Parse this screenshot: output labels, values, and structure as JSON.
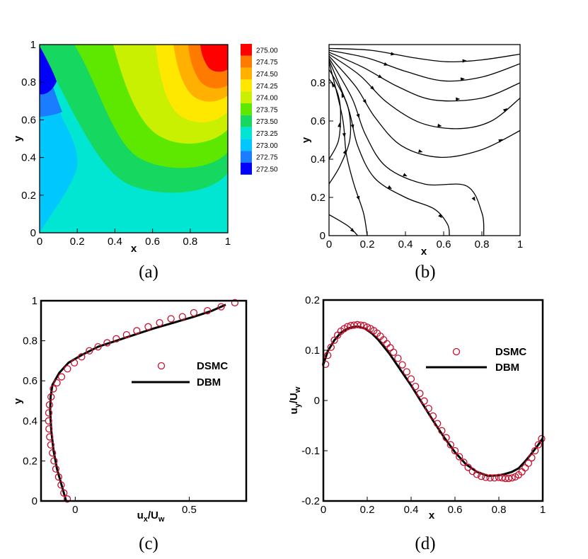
{
  "chart_data": [
    {
      "panel": "a",
      "type": "heatmap",
      "caption": "(a)",
      "xlabel": "x",
      "ylabel": "y",
      "xlim": [
        0,
        1
      ],
      "ylim": [
        0,
        1
      ],
      "xticks": [
        "0",
        "0.2",
        "0.4",
        "0.6",
        "0.8",
        "1"
      ],
      "yticks": [
        "0",
        "0.2",
        "0.4",
        "0.6",
        "0.8",
        "1"
      ],
      "colorbar": {
        "levels": [
          "275.00",
          "274.75",
          "274.50",
          "274.25",
          "274.00",
          "273.75",
          "273.50",
          "273.25",
          "273.00",
          "272.75",
          "272.50"
        ],
        "colors": [
          "#ff0000",
          "#ff7a00",
          "#ffb000",
          "#ffe800",
          "#c8f000",
          "#5ee800",
          "#16d860",
          "#00e6d2",
          "#00c8ff",
          "#1a7cff",
          "#0000ff"
        ]
      },
      "field_description_values": {
        "min": 272.5,
        "max": 275.0
      }
    },
    {
      "panel": "b",
      "type": "streamlines",
      "caption": "(b)",
      "xlabel": "x",
      "ylabel": "y",
      "xlim": [
        0,
        1
      ],
      "ylim": [
        0,
        1
      ],
      "xticks": [
        "0",
        "0.2",
        "0.4",
        "0.6",
        "0.8",
        "1"
      ],
      "yticks": [
        "0",
        "0.2",
        "0.4",
        "0.6",
        "0.8"
      ],
      "streamlines": [
        [
          [
            0.0,
            0.98
          ],
          [
            0.22,
            0.97
          ],
          [
            0.45,
            0.93
          ],
          [
            0.62,
            0.91
          ],
          [
            0.8,
            0.92
          ],
          [
            1.0,
            0.95
          ]
        ],
        [
          [
            0.0,
            0.97
          ],
          [
            0.2,
            0.93
          ],
          [
            0.4,
            0.86
          ],
          [
            0.6,
            0.81
          ],
          [
            0.8,
            0.83
          ],
          [
            1.0,
            0.9
          ]
        ],
        [
          [
            0.0,
            0.96
          ],
          [
            0.18,
            0.88
          ],
          [
            0.36,
            0.78
          ],
          [
            0.55,
            0.71
          ],
          [
            0.8,
            0.72
          ],
          [
            1.0,
            0.8
          ]
        ],
        [
          [
            0.0,
            0.95
          ],
          [
            0.16,
            0.84
          ],
          [
            0.3,
            0.7
          ],
          [
            0.48,
            0.59
          ],
          [
            0.68,
            0.56
          ],
          [
            0.85,
            0.6
          ],
          [
            1.0,
            0.72
          ]
        ],
        [
          [
            0.0,
            0.94
          ],
          [
            0.14,
            0.78
          ],
          [
            0.24,
            0.62
          ],
          [
            0.38,
            0.47
          ],
          [
            0.58,
            0.41
          ],
          [
            0.8,
            0.45
          ],
          [
            1.0,
            0.55
          ]
        ],
        [
          [
            0.0,
            0.93
          ],
          [
            0.12,
            0.72
          ],
          [
            0.19,
            0.53
          ],
          [
            0.3,
            0.36
          ],
          [
            0.5,
            0.27
          ],
          [
            0.72,
            0.26
          ],
          [
            0.8,
            0.12
          ],
          [
            0.81,
            0.0
          ]
        ],
        [
          [
            0.0,
            0.92
          ],
          [
            0.1,
            0.67
          ],
          [
            0.15,
            0.47
          ],
          [
            0.24,
            0.3
          ],
          [
            0.4,
            0.2
          ],
          [
            0.55,
            0.14
          ],
          [
            0.62,
            0.06
          ],
          [
            0.63,
            0.0
          ]
        ],
        [
          [
            0.0,
            0.91
          ],
          [
            0.07,
            0.62
          ],
          [
            0.09,
            0.43
          ],
          [
            0.13,
            0.27
          ],
          [
            0.18,
            0.12
          ],
          [
            0.2,
            0.0
          ]
        ],
        [
          [
            0.0,
            0.4
          ],
          [
            0.05,
            0.5
          ],
          [
            0.06,
            0.66
          ],
          [
            0.04,
            0.76
          ],
          [
            0.0,
            0.82
          ]
        ],
        [
          [
            0.0,
            0.27
          ],
          [
            0.06,
            0.37
          ],
          [
            0.11,
            0.51
          ],
          [
            0.1,
            0.67
          ],
          [
            0.04,
            0.8
          ],
          [
            0.0,
            0.87
          ]
        ],
        [
          [
            0.0,
            0.11
          ],
          [
            0.1,
            0.05
          ],
          [
            0.15,
            0.0
          ]
        ]
      ]
    },
    {
      "panel": "c",
      "type": "line",
      "caption": "(c)",
      "xlabel": "u",
      "xlabel_sub1": "x",
      "xlabel_div": "/U",
      "xlabel_sub2": "w",
      "ylabel": "y",
      "xlim": [
        -0.15,
        0.75
      ],
      "ylim": [
        0,
        1
      ],
      "xticks": [
        "0",
        "0.5"
      ],
      "xtick_values": [
        0,
        0.5
      ],
      "yticks": [
        "0",
        "0.2",
        "0.4",
        "0.6",
        "0.8",
        "1"
      ],
      "legend": {
        "location": "center-right",
        "entries": [
          "DSMC",
          "DBM"
        ]
      },
      "series": [
        {
          "name": "DBM",
          "style": "line",
          "x": [
            -0.04,
            -0.06,
            -0.08,
            -0.095,
            -0.105,
            -0.11,
            -0.108,
            -0.1,
            -0.07,
            -0.03,
            0.03,
            0.1,
            0.18,
            0.26,
            0.34,
            0.43,
            0.52,
            0.6,
            0.66
          ],
          "y": [
            0.0,
            0.08,
            0.16,
            0.25,
            0.35,
            0.45,
            0.52,
            0.58,
            0.64,
            0.69,
            0.73,
            0.77,
            0.8,
            0.83,
            0.86,
            0.89,
            0.92,
            0.95,
            0.98
          ]
        },
        {
          "name": "DSMC",
          "style": "markers",
          "x": [
            -0.035,
            -0.05,
            -0.062,
            -0.073,
            -0.085,
            -0.093,
            -0.1,
            -0.107,
            -0.112,
            -0.115,
            -0.117,
            -0.116,
            -0.113,
            -0.106,
            -0.096,
            -0.08,
            -0.06,
            -0.034,
            -0.004,
            0.028,
            0.062,
            0.1,
            0.14,
            0.18,
            0.225,
            0.27,
            0.32,
            0.37,
            0.42,
            0.47,
            0.52,
            0.58,
            0.64,
            0.7
          ],
          "y": [
            0.01,
            0.04,
            0.08,
            0.12,
            0.16,
            0.2,
            0.24,
            0.28,
            0.32,
            0.36,
            0.4,
            0.44,
            0.48,
            0.52,
            0.56,
            0.59,
            0.62,
            0.66,
            0.69,
            0.72,
            0.75,
            0.77,
            0.79,
            0.81,
            0.83,
            0.85,
            0.87,
            0.89,
            0.91,
            0.92,
            0.94,
            0.95,
            0.97,
            0.99
          ]
        }
      ]
    },
    {
      "panel": "d",
      "type": "line",
      "caption": "(d)",
      "xlabel": "x",
      "ylabel": "u",
      "ylabel_sub1": "y",
      "ylabel_div": "/U",
      "ylabel_sub2": "w",
      "xlim": [
        0,
        1
      ],
      "ylim": [
        -0.2,
        0.2
      ],
      "xticks": [
        "0",
        "0.2",
        "0.4",
        "0.6",
        "0.8",
        "1"
      ],
      "yticks": [
        "-0.2",
        "-0.1",
        "0",
        "0.1",
        "0.2"
      ],
      "ytick_values": [
        -0.2,
        -0.1,
        0,
        0.1,
        0.2
      ],
      "legend": {
        "location": "center-right",
        "entries": [
          "DSMC",
          "DBM"
        ]
      },
      "series": [
        {
          "name": "DBM",
          "style": "line",
          "x": [
            0.0,
            0.02,
            0.05,
            0.08,
            0.11,
            0.14,
            0.16,
            0.19,
            0.22,
            0.25,
            0.3,
            0.35,
            0.4,
            0.45,
            0.5,
            0.55,
            0.6,
            0.65,
            0.7,
            0.75,
            0.8,
            0.83,
            0.86,
            0.89,
            0.92,
            0.95,
            0.98,
            1.0
          ],
          "y": [
            0.072,
            0.098,
            0.12,
            0.135,
            0.143,
            0.147,
            0.147,
            0.143,
            0.134,
            0.121,
            0.094,
            0.062,
            0.03,
            -0.005,
            -0.04,
            -0.073,
            -0.103,
            -0.127,
            -0.142,
            -0.15,
            -0.149,
            -0.146,
            -0.142,
            -0.135,
            -0.121,
            -0.105,
            -0.088,
            -0.075
          ]
        },
        {
          "name": "DSMC",
          "style": "markers",
          "x": [
            0.01,
            0.02,
            0.035,
            0.05,
            0.065,
            0.08,
            0.095,
            0.11,
            0.125,
            0.14,
            0.155,
            0.17,
            0.185,
            0.2,
            0.215,
            0.23,
            0.245,
            0.26,
            0.275,
            0.29,
            0.305,
            0.32,
            0.34,
            0.36,
            0.38,
            0.4,
            0.42,
            0.44,
            0.46,
            0.48,
            0.5,
            0.52,
            0.54,
            0.56,
            0.58,
            0.6,
            0.62,
            0.64,
            0.66,
            0.68,
            0.7,
            0.72,
            0.74,
            0.76,
            0.78,
            0.8,
            0.815,
            0.83,
            0.845,
            0.86,
            0.875,
            0.89,
            0.905,
            0.92,
            0.935,
            0.95,
            0.965,
            0.98,
            0.995
          ],
          "y": [
            0.072,
            0.09,
            0.106,
            0.12,
            0.13,
            0.138,
            0.143,
            0.147,
            0.149,
            0.15,
            0.151,
            0.15,
            0.149,
            0.146,
            0.143,
            0.139,
            0.134,
            0.128,
            0.121,
            0.113,
            0.105,
            0.096,
            0.084,
            0.071,
            0.057,
            0.043,
            0.028,
            0.014,
            -0.001,
            -0.016,
            -0.031,
            -0.046,
            -0.06,
            -0.074,
            -0.088,
            -0.1,
            -0.112,
            -0.123,
            -0.133,
            -0.141,
            -0.147,
            -0.151,
            -0.153,
            -0.154,
            -0.154,
            -0.153,
            -0.154,
            -0.155,
            -0.155,
            -0.154,
            -0.152,
            -0.148,
            -0.142,
            -0.134,
            -0.125,
            -0.114,
            -0.1,
            -0.088,
            -0.076
          ]
        }
      ]
    }
  ]
}
